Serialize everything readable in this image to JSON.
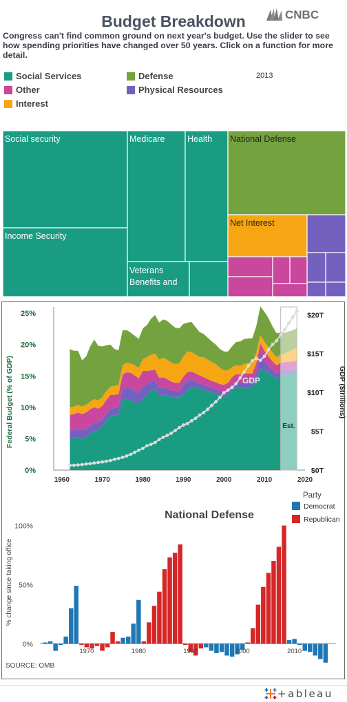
{
  "header": {
    "title": "Budget Breakdown",
    "logo_text": "CNBC",
    "subtitle": "Congress can't find common ground on next year's budget. Use the slider to see how spending priorities  have changed over 50 years. Click on a function for more detail.",
    "year": "2013"
  },
  "colors": {
    "social": "#1a9c83",
    "defense": "#74a23f",
    "other": "#c9479c",
    "physical": "#7461bf",
    "interest": "#f6a613",
    "gdp_line": "#dcdcdc",
    "democrat": "#1f77b4",
    "republican": "#d62728"
  },
  "legend": {
    "items": [
      {
        "label": "Social Services",
        "color": "#1a9c83"
      },
      {
        "label": "Defense",
        "color": "#74a23f"
      },
      {
        "label": "Other",
        "color": "#c9479c"
      },
      {
        "label": "Physical Resources",
        "color": "#7461bf"
      },
      {
        "label": "Interest",
        "color": "#f6a613"
      }
    ]
  },
  "treemap": {
    "labels": {
      "social_security": "Social security",
      "medicare": "Medicare",
      "health": "Health",
      "national_defense": "National Defense",
      "income_security": "Income Security",
      "net_interest": "Net Interest",
      "veterans": [
        "Veterans",
        "Benefits and"
      ]
    }
  },
  "chart_data": [
    {
      "type": "area",
      "title": "",
      "ylabel": "Federal Budget (% of GDP)",
      "y2label": "GDP ($trillions)",
      "xlim": [
        1958,
        2020
      ],
      "ylim": [
        0,
        26
      ],
      "y2lim": [
        0,
        21
      ],
      "x_ticks": [
        1960,
        1970,
        1980,
        1990,
        2000,
        2010,
        2020
      ],
      "y_ticks": [
        "0%",
        "5%",
        "10%",
        "15%",
        "20%",
        "25%"
      ],
      "y2_ticks": [
        "$0T",
        "$5T",
        "$10T",
        "$15T",
        "$20T"
      ],
      "gdp_label": "GDP",
      "est_label": "Est.",
      "est_range": [
        2014,
        2018
      ],
      "x": [
        1962,
        1963,
        1964,
        1965,
        1966,
        1967,
        1968,
        1969,
        1970,
        1971,
        1972,
        1973,
        1974,
        1975,
        1976,
        1977,
        1978,
        1979,
        1980,
        1981,
        1982,
        1983,
        1984,
        1985,
        1986,
        1987,
        1988,
        1989,
        1990,
        1991,
        1992,
        1993,
        1994,
        1995,
        1996,
        1997,
        1998,
        1999,
        2000,
        2001,
        2002,
        2003,
        2004,
        2005,
        2006,
        2007,
        2008,
        2009,
        2010,
        2011,
        2012,
        2013,
        2014,
        2015,
        2016,
        2017,
        2018
      ],
      "series": [
        {
          "name": "Social Services",
          "color": "#1a9c83",
          "values": [
            5.0,
            5.1,
            5.2,
            5.0,
            5.3,
            5.8,
            6.2,
            6.4,
            6.9,
            7.9,
            8.6,
            8.7,
            8.9,
            11.2,
            11.4,
            11.1,
            10.9,
            10.6,
            11.4,
            11.9,
            12.7,
            13.0,
            11.9,
            12.0,
            11.9,
            11.7,
            11.6,
            11.6,
            12.0,
            12.6,
            13.2,
            13.3,
            12.9,
            12.8,
            12.6,
            12.4,
            12.1,
            11.8,
            11.7,
            12.0,
            12.8,
            13.2,
            13.1,
            13.1,
            13.1,
            13.3,
            14.2,
            16.2,
            15.8,
            15.5,
            15.0,
            14.6,
            15.0,
            15.2,
            15.3,
            15.3,
            15.5
          ]
        },
        {
          "name": "Physical Resources",
          "color": "#7461bf",
          "values": [
            1.4,
            1.3,
            1.4,
            1.4,
            1.3,
            1.3,
            1.3,
            1.2,
            1.2,
            1.2,
            1.2,
            1.2,
            1.2,
            1.7,
            1.8,
            1.9,
            1.8,
            1.7,
            1.9,
            1.7,
            1.4,
            1.3,
            1.2,
            1.2,
            1.1,
            1.0,
            1.0,
            1.0,
            1.6,
            1.7,
            1.2,
            0.8,
            0.9,
            0.8,
            0.8,
            0.7,
            0.8,
            0.8,
            0.8,
            0.8,
            0.8,
            0.8,
            0.8,
            0.9,
            0.9,
            0.8,
            1.4,
            2.3,
            1.6,
            1.1,
            0.9,
            0.8,
            0.8,
            0.8,
            0.8,
            0.8,
            0.8
          ]
        },
        {
          "name": "Other",
          "color": "#c9479c",
          "values": [
            2.4,
            2.5,
            2.6,
            2.5,
            2.6,
            2.6,
            2.5,
            2.2,
            2.1,
            2.1,
            2.2,
            2.1,
            2.0,
            2.3,
            2.4,
            2.5,
            2.4,
            2.3,
            2.5,
            2.2,
            1.8,
            1.7,
            1.6,
            1.6,
            1.5,
            1.4,
            1.3,
            1.3,
            1.3,
            1.3,
            1.3,
            1.3,
            1.3,
            1.2,
            1.1,
            1.1,
            1.1,
            1.1,
            1.1,
            1.1,
            1.2,
            1.3,
            1.3,
            1.4,
            1.4,
            1.3,
            1.5,
            1.7,
            1.6,
            1.5,
            1.4,
            1.3,
            1.3,
            1.2,
            1.2,
            1.2,
            1.2
          ]
        },
        {
          "name": "Interest",
          "color": "#f6a613",
          "values": [
            1.2,
            1.2,
            1.2,
            1.2,
            1.2,
            1.2,
            1.3,
            1.3,
            1.4,
            1.4,
            1.3,
            1.4,
            1.5,
            1.5,
            1.5,
            1.5,
            1.6,
            1.7,
            1.9,
            2.2,
            2.5,
            2.6,
            2.9,
            3.1,
            3.1,
            3.0,
            3.0,
            3.1,
            3.2,
            3.3,
            3.1,
            3.0,
            2.9,
            3.2,
            3.1,
            3.0,
            2.9,
            2.6,
            2.3,
            2.0,
            1.6,
            1.4,
            1.4,
            1.5,
            1.7,
            1.7,
            1.7,
            1.3,
            1.5,
            1.5,
            1.4,
            1.3,
            1.3,
            1.4,
            1.6,
            1.9,
            2.1
          ]
        },
        {
          "name": "Defense",
          "color": "#74a23f",
          "values": [
            9.3,
            8.9,
            8.6,
            7.4,
            7.7,
            8.8,
            9.5,
            8.7,
            8.1,
            7.3,
            6.7,
            5.9,
            5.5,
            5.6,
            5.2,
            4.9,
            4.7,
            4.6,
            4.9,
            5.1,
            5.7,
            6.1,
            5.9,
            6.1,
            6.2,
            6.1,
            5.8,
            5.6,
            5.2,
            4.6,
            4.8,
            4.4,
            4.0,
            3.7,
            3.5,
            3.3,
            3.1,
            3.0,
            3.0,
            3.0,
            3.3,
            3.7,
            3.9,
            4.0,
            3.9,
            3.9,
            4.2,
            4.6,
            4.7,
            4.6,
            4.2,
            3.8,
            3.5,
            3.3,
            3.2,
            3.1,
            3.0
          ]
        }
      ],
      "gdp_trillions": [
        0.59,
        0.62,
        0.66,
        0.71,
        0.78,
        0.83,
        0.91,
        0.98,
        1.05,
        1.13,
        1.23,
        1.38,
        1.5,
        1.64,
        1.82,
        2.03,
        2.29,
        2.56,
        2.79,
        3.13,
        3.31,
        3.54,
        3.93,
        4.22,
        4.46,
        4.74,
        5.1,
        5.48,
        5.8,
        5.99,
        6.34,
        6.66,
        7.07,
        7.4,
        7.82,
        8.33,
        8.79,
        9.35,
        9.95,
        10.29,
        10.64,
        11.14,
        11.87,
        12.64,
        13.4,
        14.06,
        14.37,
        14.12,
        14.66,
        15.52,
        16.16,
        16.66,
        17.4,
        18.1,
        18.9,
        19.7,
        20.5
      ]
    },
    {
      "type": "bar",
      "title": "National Defense",
      "ylabel": "% change since taking office",
      "xlim": [
        1961,
        2018
      ],
      "ylim": [
        -15,
        105
      ],
      "x_ticks": [
        "1970",
        "1980",
        "1990",
        "2000",
        "2010"
      ],
      "y_ticks": [
        "0%",
        "50%",
        "100%"
      ],
      "legend_title": "Party",
      "legend": [
        {
          "label": "Democrat",
          "color": "#1f77b4"
        },
        {
          "label": "Republican",
          "color": "#d62728"
        }
      ],
      "x": [
        1962,
        1963,
        1964,
        1965,
        1966,
        1967,
        1968,
        1969,
        1970,
        1971,
        1972,
        1973,
        1974,
        1975,
        1976,
        1977,
        1978,
        1979,
        1980,
        1981,
        1982,
        1983,
        1984,
        1985,
        1986,
        1987,
        1988,
        1989,
        1990,
        1991,
        1992,
        1993,
        1994,
        1995,
        1996,
        1997,
        1998,
        1999,
        2000,
        2001,
        2002,
        2003,
        2004,
        2005,
        2006,
        2007,
        2008,
        2009,
        2010,
        2011,
        2012,
        2013,
        2014,
        2015,
        2016
      ],
      "party": [
        "D",
        "D",
        "D",
        "D",
        "D",
        "D",
        "D",
        "R",
        "R",
        "R",
        "R",
        "R",
        "R",
        "R",
        "R",
        "D",
        "D",
        "D",
        "D",
        "R",
        "R",
        "R",
        "R",
        "R",
        "R",
        "R",
        "R",
        "R",
        "R",
        "R",
        "R",
        "D",
        "D",
        "D",
        "D",
        "D",
        "D",
        "D",
        "D",
        "R",
        "R",
        "R",
        "R",
        "R",
        "R",
        "R",
        "R",
        "D",
        "D",
        "D",
        "D",
        "D",
        "D",
        "D",
        "D"
      ],
      "values": [
        1,
        2,
        -6,
        -1,
        6,
        30,
        49,
        -1,
        -3,
        -4,
        -2,
        -6,
        -3,
        10,
        2,
        5,
        6,
        17,
        37,
        2,
        18,
        32,
        44,
        63,
        73,
        77,
        84,
        -1,
        -7,
        -10,
        -4,
        -3,
        -6,
        -8,
        -7,
        -10,
        -11,
        -9,
        -5,
        1,
        13,
        33,
        48,
        60,
        70,
        82,
        100,
        3,
        4,
        -1,
        -6,
        -7,
        -10,
        -13,
        -16
      ],
      "source": "SOURCE: OMB"
    }
  ]
}
